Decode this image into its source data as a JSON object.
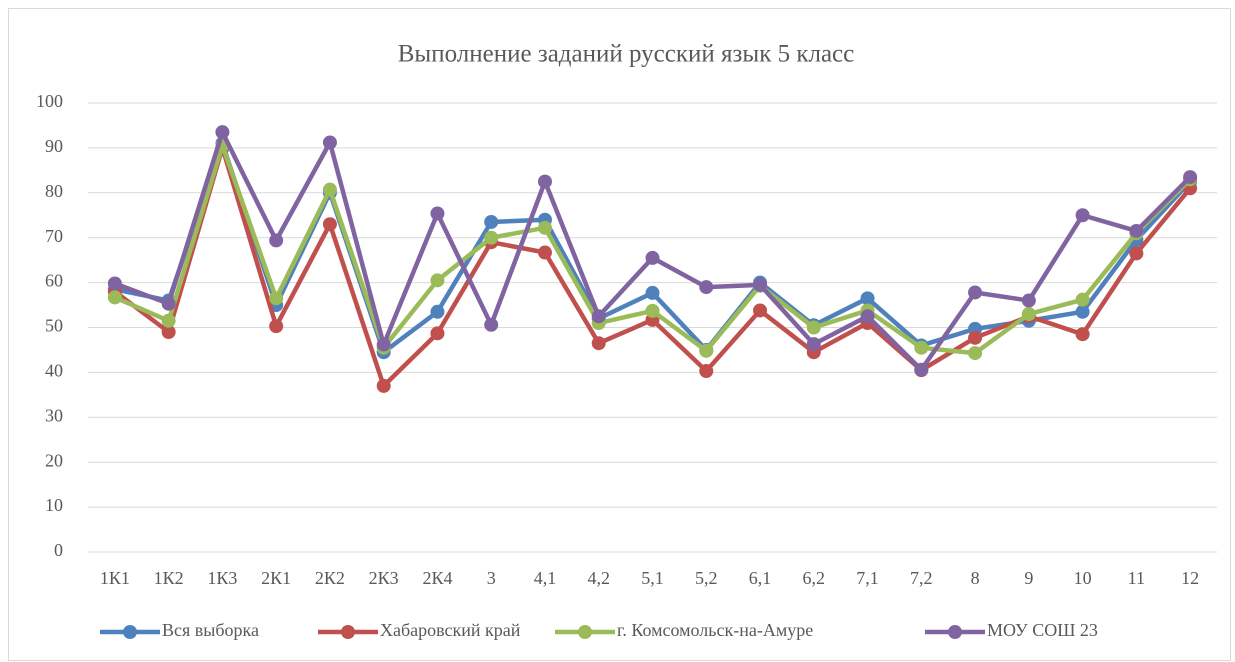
{
  "chart_data": {
    "type": "line",
    "title": "Выполнение заданий русский язык 5 класс",
    "categories": [
      "1К1",
      "1К2",
      "1К3",
      "2К1",
      "2К2",
      "2К3",
      "2К4",
      "3",
      "4,1",
      "4,2",
      "5,1",
      "5,2",
      "6,1",
      "6,2",
      "7,1",
      "7,2",
      "8",
      "9",
      "10",
      "11",
      "12"
    ],
    "series": [
      {
        "name": "Вся выборка",
        "color": "#4f81bd",
        "values": [
          58.5,
          56,
          91,
          55,
          80,
          44.5,
          53.5,
          73.5,
          74,
          52,
          57.7,
          45,
          60,
          50.5,
          56.5,
          46,
          49.7,
          51.5,
          53.5,
          69.5,
          82.5
        ]
      },
      {
        "name": "Хабаровский край",
        "color": "#c0504d",
        "values": [
          58,
          49,
          90,
          50.3,
          73,
          37,
          48.7,
          69,
          66.7,
          46.5,
          51.7,
          40.3,
          53.8,
          44.5,
          51,
          40.5,
          47.7,
          52.5,
          48.5,
          66.5,
          81
        ]
      },
      {
        "name": "г. Комсомольск-на-Амуре",
        "color": "#9bbb59",
        "values": [
          56.7,
          51.5,
          90.5,
          56.5,
          80.7,
          45.5,
          60.5,
          70,
          72.2,
          51,
          53.7,
          44.8,
          59.3,
          50,
          53.8,
          45.5,
          44.3,
          53,
          56.2,
          71,
          83
        ]
      },
      {
        "name": "МОУ СОШ 23",
        "color": "#8064a2",
        "values": [
          59.8,
          55.3,
          93.5,
          69.4,
          91.2,
          46.2,
          75.4,
          50.6,
          82.5,
          52.5,
          65.5,
          59,
          59.5,
          46.3,
          52.5,
          40.6,
          57.8,
          56,
          75,
          71.5,
          83.5
        ]
      }
    ],
    "ylim": [
      0,
      100
    ],
    "yticks": [
      0,
      10,
      20,
      30,
      40,
      50,
      60,
      70,
      80,
      90,
      100
    ],
    "grid": true,
    "legend": "bottom"
  }
}
